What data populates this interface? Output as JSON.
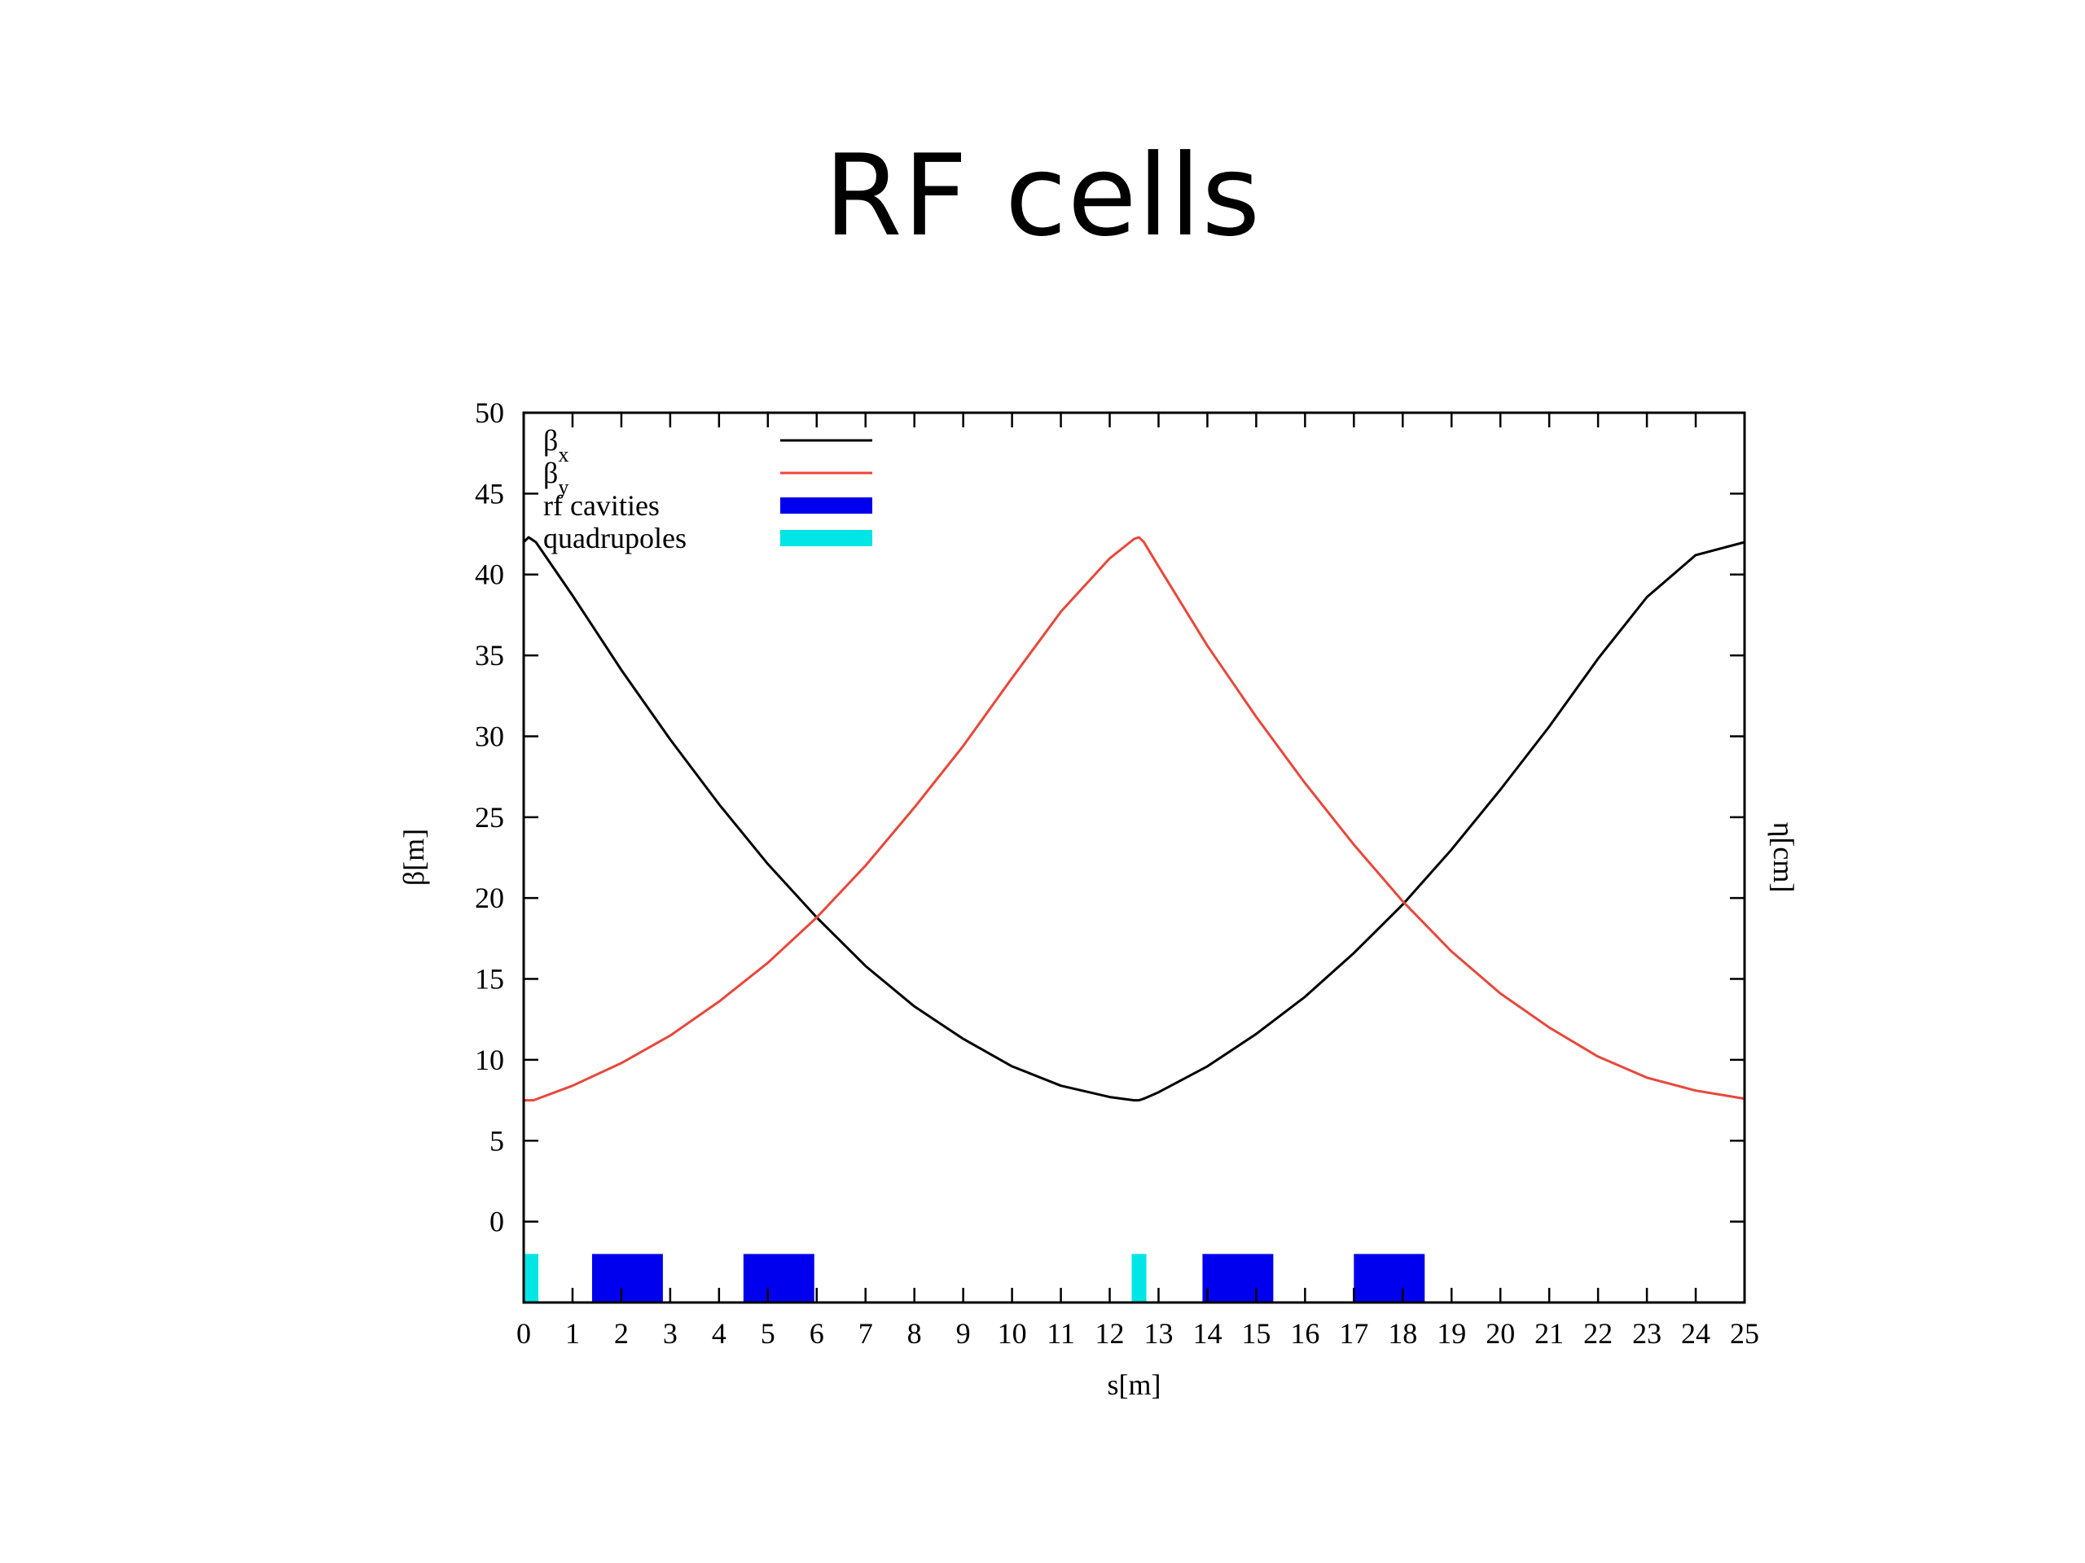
{
  "slide": {
    "title": "RF cells"
  },
  "chart_data": {
    "type": "line",
    "xlabel": "s[m]",
    "ylabel": "β[m]",
    "y2label": "η[cm]",
    "xlim": [
      0,
      25
    ],
    "ylim": [
      -5,
      50
    ],
    "x_ticks": [
      0,
      1,
      2,
      3,
      4,
      5,
      6,
      7,
      8,
      9,
      10,
      11,
      12,
      13,
      14,
      15,
      16,
      17,
      18,
      19,
      20,
      21,
      22,
      23,
      24,
      25
    ],
    "y_ticks": [
      0,
      5,
      10,
      15,
      20,
      25,
      30,
      35,
      40,
      45,
      50
    ],
    "legend_position": "top-left",
    "grid": false,
    "series": [
      {
        "name": "βx",
        "legend_main": "β",
        "legend_sub": "x",
        "color": "#000000",
        "x": [
          0,
          0.1,
          0.25,
          1,
          2,
          3,
          4,
          5,
          6,
          7,
          8,
          9,
          10,
          11,
          12,
          12.5,
          12.6,
          12.7,
          13,
          14,
          15,
          16,
          17,
          18,
          19,
          20,
          21,
          22,
          23,
          24,
          25
        ],
        "y": [
          42.0,
          42.3,
          42.0,
          38.7,
          34.1,
          29.8,
          25.8,
          22.1,
          18.8,
          15.8,
          13.3,
          11.3,
          9.6,
          8.4,
          7.7,
          7.5,
          7.5,
          7.6,
          8.0,
          9.6,
          11.6,
          13.9,
          16.6,
          19.6,
          23.0,
          26.7,
          30.6,
          34.8,
          38.6,
          41.2,
          42.0
        ]
      },
      {
        "name": "βy",
        "legend_main": "β",
        "legend_sub": "y",
        "color": "#e8473a",
        "x": [
          0,
          0.2,
          1,
          2,
          3,
          4,
          5,
          6,
          7,
          8,
          9,
          10,
          11,
          12,
          12.5,
          12.6,
          12.7,
          13,
          14,
          15,
          16,
          17,
          18,
          19,
          20,
          21,
          22,
          23,
          24,
          25
        ],
        "y": [
          7.5,
          7.5,
          8.4,
          9.8,
          11.5,
          13.6,
          16.0,
          18.8,
          22.0,
          25.6,
          29.4,
          33.6,
          37.7,
          41.0,
          42.2,
          42.3,
          42.0,
          40.5,
          35.6,
          31.2,
          27.1,
          23.3,
          19.8,
          16.7,
          14.1,
          12.0,
          10.2,
          8.9,
          8.1,
          7.6
        ]
      }
    ],
    "elements": [
      {
        "name": "rf cavities",
        "color": "#0000ee",
        "segments": [
          [
            1.4,
            2.85
          ],
          [
            4.5,
            5.95
          ],
          [
            13.9,
            15.35
          ],
          [
            17.0,
            18.45
          ]
        ],
        "ymin": -5,
        "ymax": -2
      },
      {
        "name": "quadrupoles",
        "color": "#00e5e5",
        "segments": [
          [
            0,
            0.3
          ],
          [
            12.45,
            12.75
          ]
        ],
        "ymin": -5,
        "ymax": -2
      }
    ]
  }
}
